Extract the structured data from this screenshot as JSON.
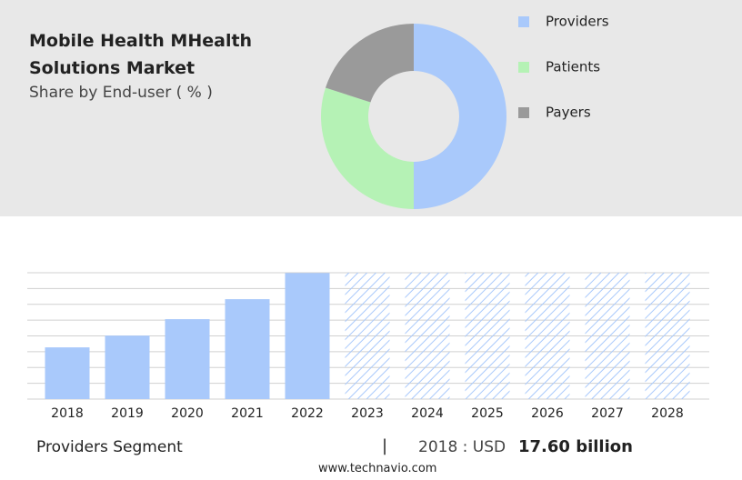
{
  "chart_data": [
    {
      "type": "pie",
      "title": "Mobile Health MHealth Solutions Market",
      "subtitle": "Share by End-user ( % )",
      "donut": true,
      "categories": [
        "Providers",
        "Patients",
        "Payers"
      ],
      "values": [
        50,
        30,
        20
      ],
      "colors": [
        "#a9c9fb",
        "#b5f2b5",
        "#9a9a9a"
      ]
    },
    {
      "type": "bar",
      "categories": [
        "2018",
        "2019",
        "2020",
        "2021",
        "2022",
        "2023",
        "2024",
        "2025",
        "2026",
        "2027",
        "2028"
      ],
      "values": [
        17.6,
        21.6,
        27.2,
        34.0,
        42.9,
        null,
        null,
        null,
        null,
        null,
        null
      ],
      "color": "#a9c9fb",
      "ylim": [
        0,
        43
      ],
      "yticks": [
        0,
        5.375,
        10.75,
        16.125,
        21.5,
        26.875,
        32.25,
        37.625,
        43
      ],
      "grid": true
    }
  ],
  "footer": {
    "segment": "Providers Segment",
    "separator": "|",
    "year_label": "2018 : USD",
    "value_label": "17.60 billion",
    "source": "www.technavio.com"
  }
}
